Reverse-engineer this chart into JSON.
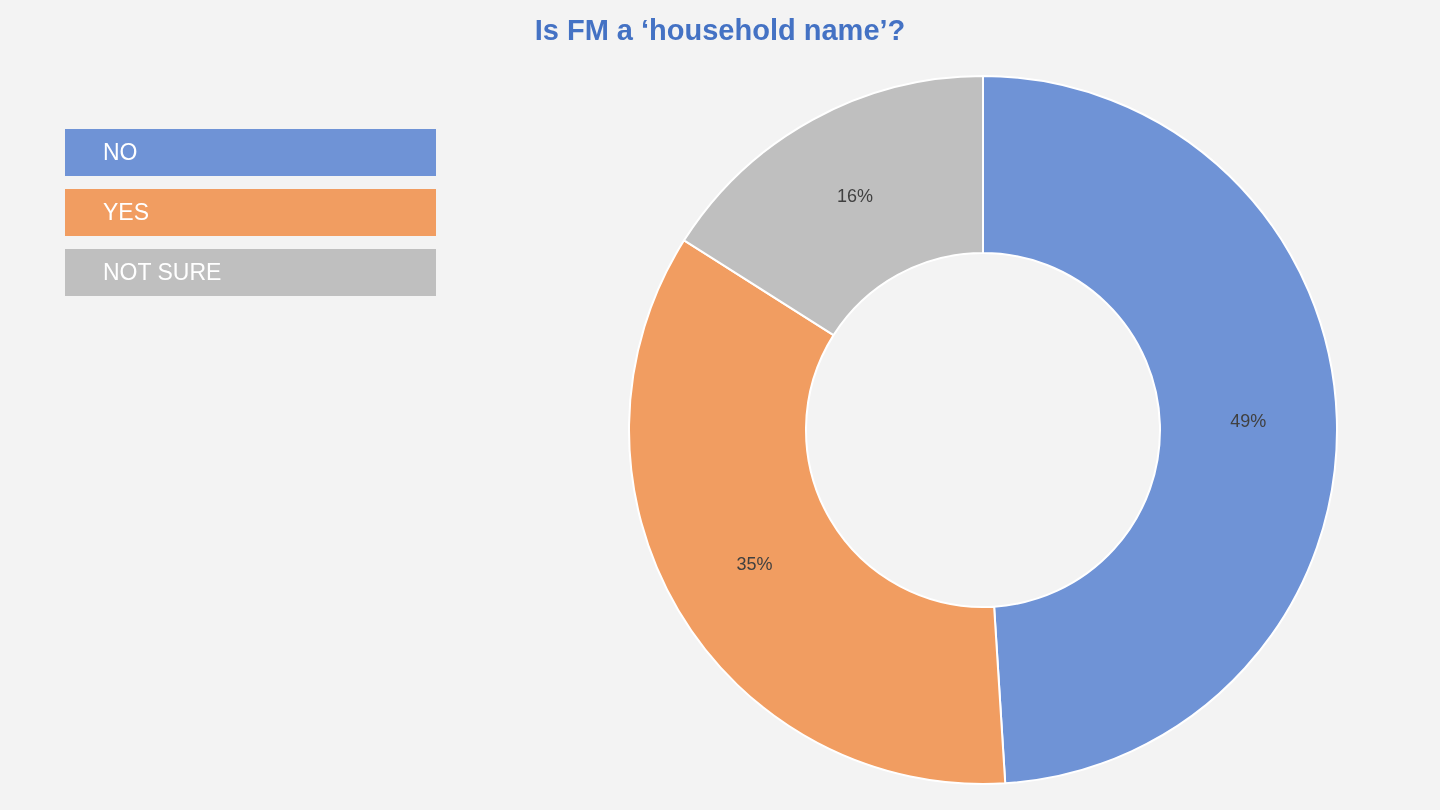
{
  "chart_data": {
    "type": "donut",
    "title": "Is FM a ‘household name’?",
    "categories": [
      "NO",
      "YES",
      "NOT SURE"
    ],
    "values": [
      49,
      35,
      16
    ],
    "colors": [
      "#6f93d6",
      "#f19d61",
      "#bfbfbf"
    ],
    "value_labels": [
      "49%",
      "35%",
      "16%"
    ],
    "legend": "top left"
  }
}
